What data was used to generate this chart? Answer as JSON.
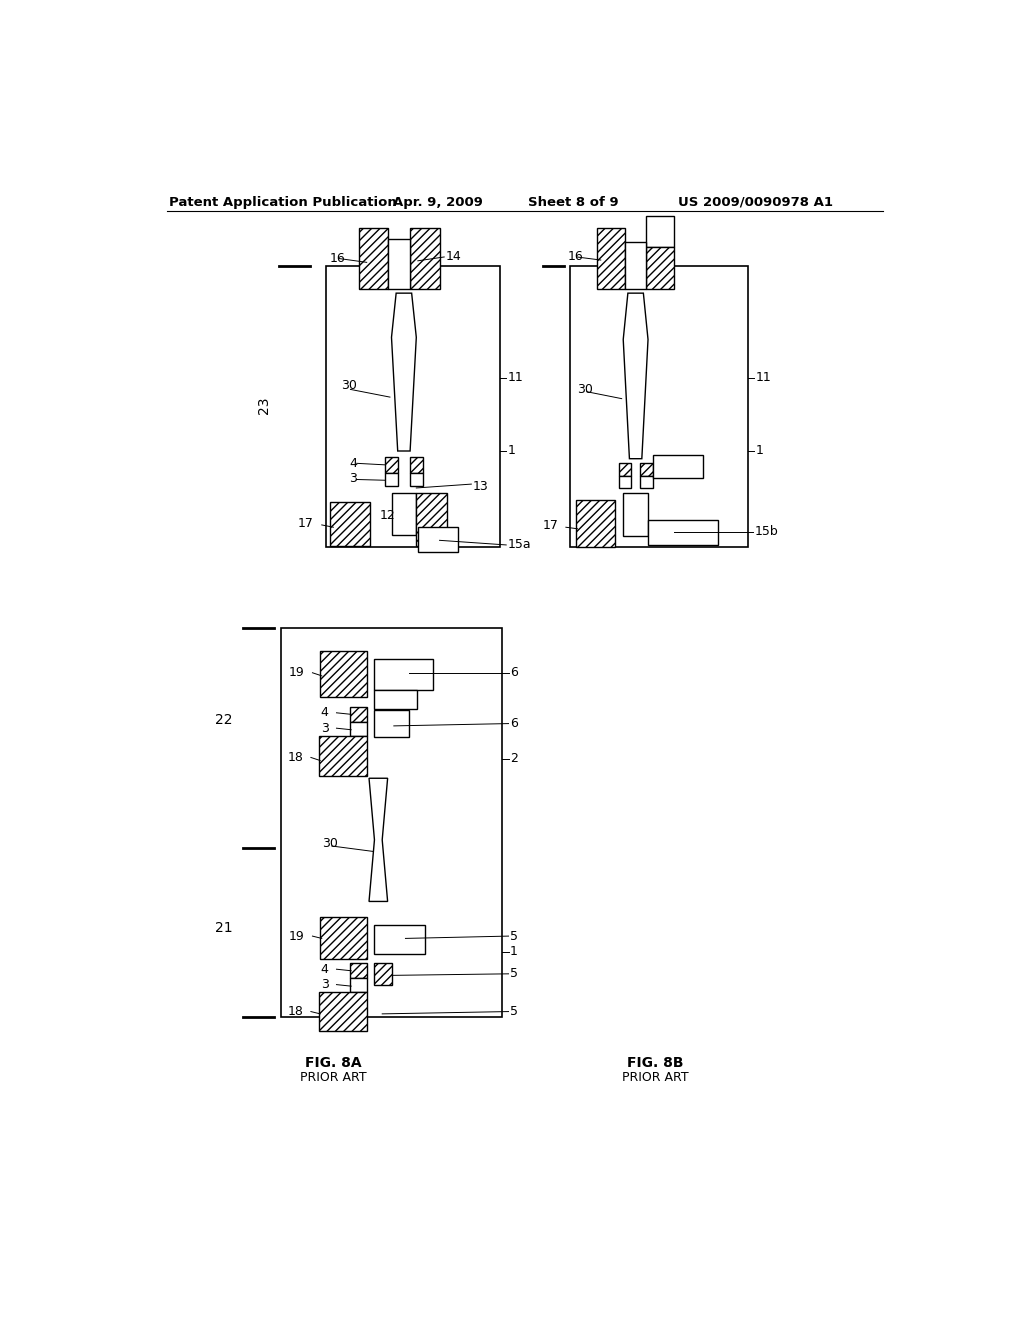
{
  "bg_color": "#ffffff",
  "header_text": "Patent Application Publication",
  "header_date": "Apr. 9, 2009",
  "header_sheet": "Sheet 8 of 9",
  "header_patent": "US 2009/0090978 A1",
  "fig8a_label": "FIG. 8A",
  "fig8a_sub": "PRIOR ART",
  "fig8b_label": "FIG. 8B",
  "fig8b_sub": "PRIOR ART"
}
